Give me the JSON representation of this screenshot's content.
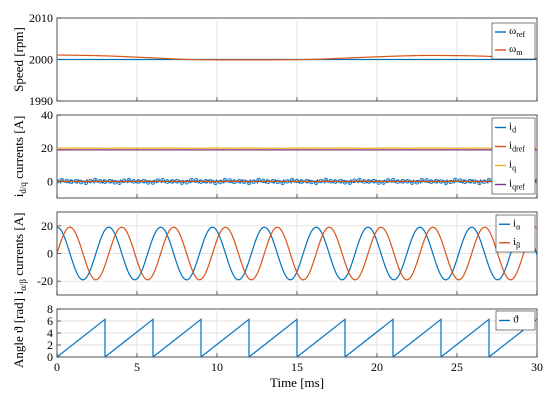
{
  "chart_data": [
    {
      "type": "line",
      "ylabel": "Speed [rpm]",
      "ylim": [
        1990,
        2010
      ],
      "yticks": [
        "2010",
        "2000",
        "1990"
      ],
      "xlim": [
        0,
        30
      ],
      "grid": true,
      "legend_position": "right",
      "series": [
        {
          "name": "ω",
          "name_sub": "ref",
          "color": "#0072BD",
          "x": [
            0,
            30
          ],
          "y": [
            2000,
            2000
          ]
        },
        {
          "name": "ω",
          "name_sub": "m",
          "color": "#D95319",
          "x": [
            0,
            3,
            6,
            8,
            10,
            13,
            16,
            19,
            21,
            23,
            26,
            28,
            30
          ],
          "y": [
            2001.1,
            2000.9,
            2000.4,
            2000,
            1999.9,
            1999.9,
            2000,
            2000.5,
            2000.8,
            2001,
            2000.9,
            2000.6,
            2000.2
          ]
        }
      ]
    },
    {
      "type": "line",
      "ylabel": "i",
      "ylabel_sub": "d/q",
      "ylabel_rest": " currents [A]",
      "ylim": [
        -10,
        40
      ],
      "yticks": [
        "40",
        "20",
        "0"
      ],
      "xlim": [
        0,
        30
      ],
      "grid": true,
      "legend_position": "right",
      "series": [
        {
          "name": "i",
          "name_sub": "d",
          "color": "#0072BD",
          "level": 0,
          "ripple": 1.0,
          "marker": "circle"
        },
        {
          "name": "i",
          "name_sub": "dref",
          "color": "#D95319",
          "level": 0,
          "ripple": 0
        },
        {
          "name": "i",
          "name_sub": "q",
          "color": "#EDB120",
          "level": 20,
          "ripple": 0.3
        },
        {
          "name": "i",
          "name_sub": "qref",
          "color": "#7E2F8E",
          "level": 19,
          "ripple": 0
        }
      ]
    },
    {
      "type": "line",
      "ylabel": "i",
      "ylabel_sub": "α/β",
      "ylabel_rest": " currents [A]",
      "ylim": [
        -30,
        30
      ],
      "yticks": [
        "20",
        "0",
        "-20"
      ],
      "xlim": [
        0,
        30
      ],
      "grid": true,
      "legend_position": "right",
      "series": [
        {
          "name": "i",
          "name_sub": "α",
          "color": "#0072BD",
          "amplitude": 19,
          "period_ms": 3.24,
          "phase_deg": 90
        },
        {
          "name": "i",
          "name_sub": "β",
          "color": "#D95319",
          "amplitude": 19,
          "period_ms": 3.24,
          "phase_deg": 0
        }
      ]
    },
    {
      "type": "line",
      "ylabel": "Angle ϑ [rad]",
      "ylim": [
        0,
        8
      ],
      "yticks": [
        "8",
        "6",
        "4",
        "2",
        "0"
      ],
      "xlim": [
        0,
        30
      ],
      "xticks": [
        "0",
        "5",
        "10",
        "15",
        "20",
        "25",
        "30"
      ],
      "xlabel": "Time [ms]",
      "grid": true,
      "legend_position": "right",
      "series": [
        {
          "name": "ϑ",
          "name_sub": "",
          "color": "#0072BD",
          "max": 6.283,
          "period_ms": 3.0,
          "start_value": 0
        }
      ]
    }
  ]
}
